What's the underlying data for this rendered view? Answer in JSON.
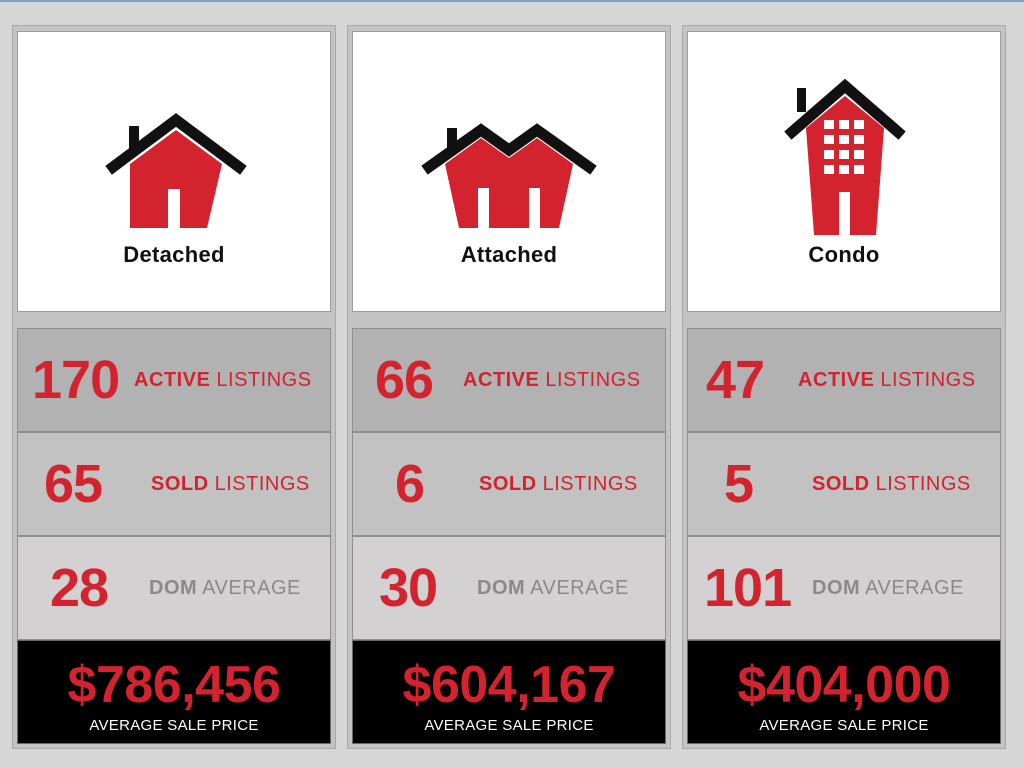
{
  "columns": [
    {
      "type": "Detached",
      "icon": "detached-house-icon",
      "active": "170",
      "active_word": "ACTIVE",
      "active_suffix": "LISTINGS",
      "sold": "65",
      "sold_word": "SOLD",
      "sold_suffix": "LISTINGS",
      "dom": "28",
      "dom_word": "DOM",
      "dom_suffix": "AVERAGE",
      "price": "$786,456",
      "price_label": "AVERAGE SALE PRICE"
    },
    {
      "type": "Attached",
      "icon": "attached-house-icon",
      "active": "66",
      "active_word": "ACTIVE",
      "active_suffix": "LISTINGS",
      "sold": "6",
      "sold_word": "SOLD",
      "sold_suffix": "LISTINGS",
      "dom": "30",
      "dom_word": "DOM",
      "dom_suffix": "AVERAGE",
      "price": "$604,167",
      "price_label": "AVERAGE SALE PRICE"
    },
    {
      "type": "Condo",
      "icon": "condo-building-icon",
      "active": "47",
      "active_word": "ACTIVE",
      "active_suffix": "LISTINGS",
      "sold": "5",
      "sold_word": "SOLD",
      "sold_suffix": "LISTINGS",
      "dom": "101",
      "dom_word": "DOM",
      "dom_suffix": "AVERAGE",
      "price": "$404,000",
      "price_label": "AVERAGE SALE PRICE"
    }
  ],
  "colors": {
    "accent": "#d2232f",
    "roof": "#111111",
    "grey_text": "#8a8a8a",
    "price_bg": "#000000"
  }
}
